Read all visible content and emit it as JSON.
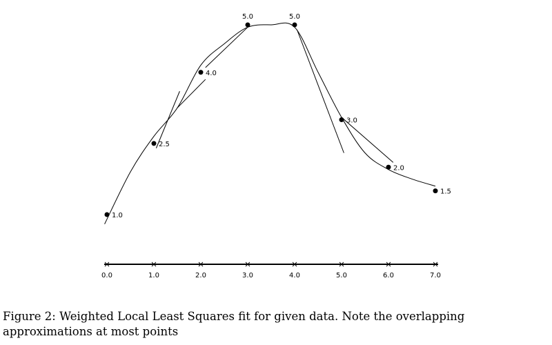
{
  "chart_data": {
    "type": "scatter",
    "points": [
      {
        "x": 0,
        "y": 1.0,
        "label": "1.0"
      },
      {
        "x": 1,
        "y": 2.5,
        "label": "2.5"
      },
      {
        "x": 2,
        "y": 4.0,
        "label": "4.0"
      },
      {
        "x": 3,
        "y": 5.0,
        "label": "5.0"
      },
      {
        "x": 4,
        "y": 5.0,
        "label": "5.0"
      },
      {
        "x": 5,
        "y": 3.0,
        "label": "3.0"
      },
      {
        "x": 6,
        "y": 2.0,
        "label": "2.0"
      },
      {
        "x": 7,
        "y": 1.5,
        "label": "1.5"
      }
    ],
    "x_ticks": [
      "0.0",
      "1.0",
      "2.0",
      "3.0",
      "4.0",
      "5.0",
      "6.0",
      "7.0"
    ],
    "xlim": [
      0,
      7
    ],
    "ylim": [
      1.0,
      5.0
    ],
    "grid": false,
    "curves": [
      {
        "type": "smooth",
        "x": [
          -0.05,
          0.5,
          1.0,
          1.5,
          2.0,
          2.5,
          3.0,
          3.5,
          4.0,
          4.5,
          5.0,
          5.5,
          6.0,
          6.5,
          7.0
        ],
        "y": [
          0.8,
          1.9,
          2.65,
          3.25,
          4.15,
          4.6,
          4.95,
          5.0,
          4.95,
          4.0,
          3.05,
          2.3,
          1.95,
          1.75,
          1.6
        ]
      },
      {
        "type": "segment",
        "x": [
          1.05,
          1.55
        ],
        "y": [
          2.4,
          3.6
        ]
      },
      {
        "type": "segment",
        "x": [
          1.5,
          2.1
        ],
        "y": [
          3.25,
          3.85
        ]
      },
      {
        "type": "segment",
        "x": [
          2.1,
          3.0
        ],
        "y": [
          4.1,
          4.95
        ]
      },
      {
        "type": "segment",
        "x": [
          4.05,
          5.05
        ],
        "y": [
          4.9,
          2.3
        ]
      },
      {
        "type": "segment",
        "x": [
          5.0,
          6.1
        ],
        "y": [
          3.05,
          2.1
        ]
      }
    ]
  },
  "caption": "Figure 2: Weighted Local Least Squares fit for given data. Note the overlapping approximations at most points"
}
